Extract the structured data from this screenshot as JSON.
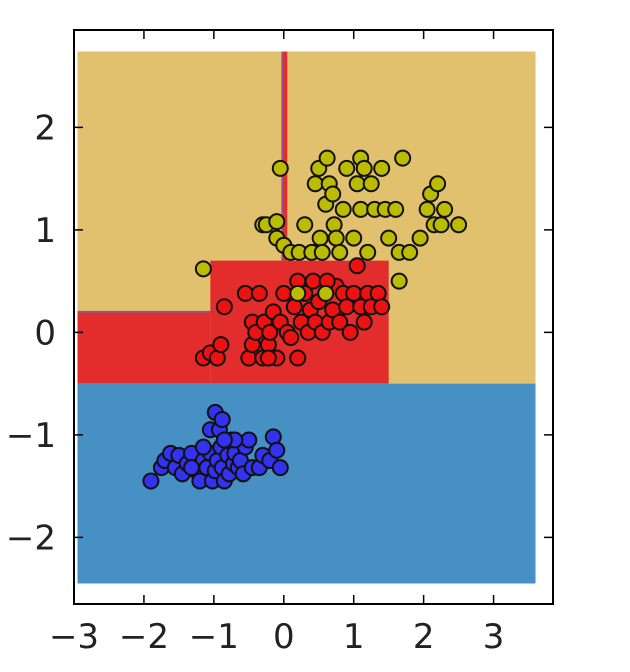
{
  "chart_data": {
    "type": "scatter",
    "title": "",
    "xlabel": "",
    "ylabel": "",
    "xlim": [
      -3.0,
      3.85
    ],
    "ylim": [
      -2.65,
      2.95
    ],
    "xticks": [
      -3,
      -2,
      -1,
      0,
      1,
      2,
      3
    ],
    "yticks": [
      -2,
      -1,
      0,
      1,
      2
    ],
    "xtick_labels": [
      "−3",
      "−2",
      "−1",
      "0",
      "1",
      "2",
      "3"
    ],
    "ytick_labels": [
      "−2",
      "−1",
      "0",
      "1",
      "2"
    ],
    "grid": false,
    "legend": "none",
    "decision_regions": [
      {
        "class": 2,
        "color": "#e1c16e",
        "x": [
          -2.95,
          3.6
        ],
        "y": [
          -0.5,
          2.74
        ]
      },
      {
        "class": 1,
        "color": "#e32c2c",
        "x": [
          -2.95,
          -1.05
        ],
        "y": [
          -0.5,
          0.2
        ]
      },
      {
        "class": 1,
        "color": "#e32c2c",
        "x": [
          -1.05,
          1.5
        ],
        "y": [
          -0.5,
          0.7
        ]
      },
      {
        "class": 0,
        "color": "#4790c4",
        "x": [
          -2.95,
          3.6
        ],
        "y": [
          -2.45,
          -0.5
        ]
      },
      {
        "class": 1,
        "color": "#e32c2c",
        "x": [
          -0.02,
          0.05
        ],
        "y": [
          0.7,
          2.74
        ]
      }
    ],
    "series": [
      {
        "color": "#3333ee",
        "points": [
          [
            -1.9,
            -1.45
          ],
          [
            -1.75,
            -1.32
          ],
          [
            -1.7,
            -1.25
          ],
          [
            -1.62,
            -1.18
          ],
          [
            -1.55,
            -1.32
          ],
          [
            -1.5,
            -1.2
          ],
          [
            -1.45,
            -1.38
          ],
          [
            -1.38,
            -1.28
          ],
          [
            -1.32,
            -1.18
          ],
          [
            -1.25,
            -1.35
          ],
          [
            -1.2,
            -1.45
          ],
          [
            -1.15,
            -1.25
          ],
          [
            -1.1,
            -1.32
          ],
          [
            -1.05,
            -1.18
          ],
          [
            -1.02,
            -1.45
          ],
          [
            -0.98,
            -1.35
          ],
          [
            -0.95,
            -1.25
          ],
          [
            -0.9,
            -1.12
          ],
          [
            -0.88,
            -1.32
          ],
          [
            -0.85,
            -1.45
          ],
          [
            -0.8,
            -1.2
          ],
          [
            -0.78,
            -1.38
          ],
          [
            -0.75,
            -1.05
          ],
          [
            -0.72,
            -1.28
          ],
          [
            -0.7,
            -1.18
          ],
          [
            -0.65,
            -1.32
          ],
          [
            -0.62,
            -1.25
          ],
          [
            -0.58,
            -1.38
          ],
          [
            -0.55,
            -1.12
          ],
          [
            -0.5,
            -1.05
          ],
          [
            -0.45,
            -1.32
          ],
          [
            -0.35,
            -1.32
          ],
          [
            -0.3,
            -1.2
          ],
          [
            -0.2,
            -1.25
          ],
          [
            -0.15,
            -1.02
          ],
          [
            -0.1,
            -1.15
          ],
          [
            -0.05,
            -1.32
          ],
          [
            -1.05,
            -0.95
          ],
          [
            -0.92,
            -0.95
          ],
          [
            -0.98,
            -0.78
          ],
          [
            -0.88,
            -0.85
          ],
          [
            -0.7,
            -1.05
          ],
          [
            -0.85,
            -1.05
          ],
          [
            -1.15,
            -1.12
          ],
          [
            -1.32,
            -1.32
          ]
        ]
      },
      {
        "color": "#ee1111",
        "points": [
          [
            -1.15,
            -0.25
          ],
          [
            -1.05,
            -0.2
          ],
          [
            -0.95,
            -0.25
          ],
          [
            -0.9,
            -0.12
          ],
          [
            -0.85,
            0.25
          ],
          [
            -0.55,
            0.38
          ],
          [
            -0.5,
            -0.25
          ],
          [
            -0.45,
            0.1
          ],
          [
            -0.45,
            -0.12
          ],
          [
            -0.4,
            0.0
          ],
          [
            -0.35,
            0.38
          ],
          [
            -0.3,
            -0.25
          ],
          [
            -0.28,
            0.1
          ],
          [
            -0.22,
            -0.12
          ],
          [
            -0.2,
            0.0
          ],
          [
            -0.15,
            0.2
          ],
          [
            -0.1,
            -0.25
          ],
          [
            -0.05,
            0.1
          ],
          [
            0.0,
            0.38
          ],
          [
            0.05,
            0.0
          ],
          [
            0.1,
            -0.05
          ],
          [
            0.15,
            0.25
          ],
          [
            0.2,
            0.5
          ],
          [
            0.25,
            0.1
          ],
          [
            0.3,
            0.38
          ],
          [
            0.35,
            0.0
          ],
          [
            0.38,
            0.22
          ],
          [
            0.42,
            0.5
          ],
          [
            0.45,
            0.1
          ],
          [
            0.5,
            0.3
          ],
          [
            0.55,
            0.0
          ],
          [
            0.6,
            0.38
          ],
          [
            0.65,
            0.1
          ],
          [
            0.7,
            0.22
          ],
          [
            0.75,
            0.45
          ],
          [
            0.8,
            0.1
          ],
          [
            0.85,
            0.38
          ],
          [
            0.9,
            0.25
          ],
          [
            0.95,
            0.0
          ],
          [
            1.0,
            0.38
          ],
          [
            1.05,
            0.65
          ],
          [
            1.1,
            0.25
          ],
          [
            1.15,
            0.1
          ],
          [
            1.2,
            0.38
          ],
          [
            1.25,
            0.25
          ],
          [
            1.35,
            0.38
          ],
          [
            1.4,
            0.25
          ],
          [
            0.62,
            0.5
          ],
          [
            -0.22,
            -0.25
          ],
          [
            0.2,
            -0.25
          ]
        ]
      },
      {
        "color": "#bbbb00",
        "points": [
          [
            -1.15,
            0.62
          ],
          [
            -0.3,
            1.05
          ],
          [
            -0.25,
            1.05
          ],
          [
            -0.1,
            1.08
          ],
          [
            -0.05,
            1.6
          ],
          [
            -0.1,
            0.92
          ],
          [
            0.0,
            0.85
          ],
          [
            0.1,
            0.78
          ],
          [
            0.2,
            0.38
          ],
          [
            0.22,
            0.78
          ],
          [
            0.3,
            1.05
          ],
          [
            0.4,
            0.78
          ],
          [
            0.45,
            1.45
          ],
          [
            0.5,
            1.6
          ],
          [
            0.52,
            0.92
          ],
          [
            0.55,
            0.78
          ],
          [
            0.6,
            1.25
          ],
          [
            0.6,
            0.38
          ],
          [
            0.62,
            1.7
          ],
          [
            0.65,
            1.45
          ],
          [
            0.7,
            1.35
          ],
          [
            0.72,
            1.05
          ],
          [
            0.75,
            0.92
          ],
          [
            0.8,
            0.78
          ],
          [
            0.85,
            1.2
          ],
          [
            0.9,
            1.6
          ],
          [
            1.0,
            0.92
          ],
          [
            1.05,
            1.45
          ],
          [
            1.1,
            1.2
          ],
          [
            1.1,
            1.7
          ],
          [
            1.15,
            1.6
          ],
          [
            1.2,
            0.78
          ],
          [
            1.25,
            1.45
          ],
          [
            1.3,
            1.2
          ],
          [
            1.4,
            1.6
          ],
          [
            1.45,
            1.2
          ],
          [
            1.5,
            0.92
          ],
          [
            1.6,
            1.2
          ],
          [
            1.65,
            0.5
          ],
          [
            1.65,
            0.78
          ],
          [
            1.7,
            1.7
          ],
          [
            1.8,
            0.78
          ],
          [
            1.95,
            0.92
          ],
          [
            2.05,
            1.2
          ],
          [
            2.1,
            1.35
          ],
          [
            2.15,
            1.05
          ],
          [
            2.2,
            1.45
          ],
          [
            2.25,
            1.05
          ],
          [
            2.3,
            1.2
          ],
          [
            2.5,
            1.05
          ]
        ]
      }
    ]
  }
}
